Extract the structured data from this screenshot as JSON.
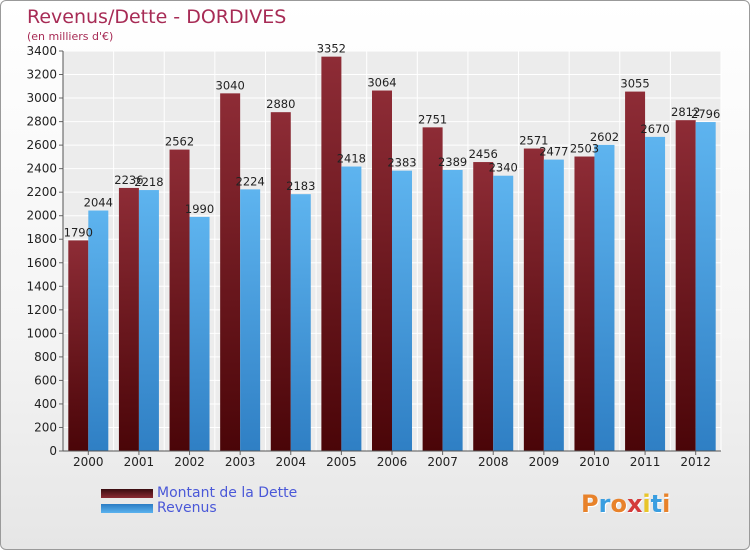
{
  "chart_data": {
    "type": "bar",
    "title": "Revenus/Dette - DORDIVES",
    "subtitle": "(en milliers d'€)",
    "categories": [
      "2000",
      "2001",
      "2002",
      "2003",
      "2004",
      "2005",
      "2006",
      "2007",
      "2008",
      "2009",
      "2010",
      "2011",
      "2012"
    ],
    "series": [
      {
        "name": "Montant de la Dette",
        "color": "#7a1f27",
        "values": [
          1790,
          2236,
          2562,
          3040,
          2880,
          3352,
          3064,
          2751,
          2456,
          2571,
          2503,
          3055,
          2812
        ]
      },
      {
        "name": "Revenus",
        "color": "#4aa3e8",
        "values": [
          2044,
          2218,
          1990,
          2224,
          2183,
          2418,
          2383,
          2389,
          2340,
          2477,
          2602,
          2670,
          2796
        ]
      }
    ],
    "yticks": [
      0,
      200,
      400,
      600,
      800,
      1000,
      1200,
      1400,
      1600,
      1800,
      2000,
      2200,
      2400,
      2600,
      2800,
      3000,
      3200,
      3400
    ],
    "ylim": [
      0,
      3400
    ],
    "grid": true,
    "legend_position": "bottom-left"
  },
  "logo": {
    "text": "Proxiti",
    "colors": [
      "#e8822a",
      "#3a9ee0",
      "#e8822a",
      "#d43a3a",
      "#e8c52a",
      "#3a9ee0",
      "#e8822a"
    ]
  }
}
